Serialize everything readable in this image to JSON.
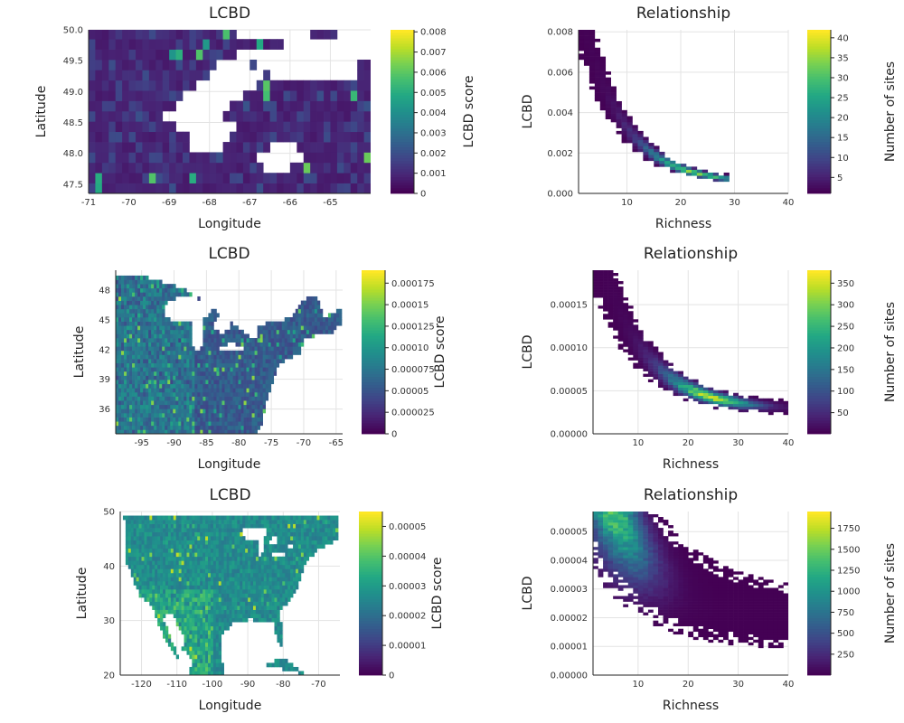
{
  "chart_data": [
    {
      "type": "heatmap",
      "title": "LCBD",
      "xlabel": "Longitude",
      "ylabel": "Latitude",
      "colorbar_label": "LCBD score",
      "colormap": "viridis",
      "xlim": [
        -71,
        -64.0
      ],
      "ylim": [
        47.35,
        50.0
      ],
      "xticks": [
        -71,
        -70,
        -69,
        -68,
        -67,
        -66,
        -65
      ],
      "xtick_labels": [
        "-71",
        "-70",
        "-69",
        "-68",
        "-67",
        "-66",
        "-65"
      ],
      "yticks": [
        47.5,
        48.0,
        48.5,
        49.0,
        49.5,
        50.0
      ],
      "ytick_labels": [
        "47.5",
        "48.0",
        "48.5",
        "49.0",
        "49.5",
        "50.0"
      ],
      "clim": [
        0,
        0.0081
      ],
      "cticks": [
        0,
        0.001,
        0.002,
        0.003,
        0.004,
        0.005,
        0.006,
        0.007,
        0.008
      ],
      "ctick_labels": [
        "0",
        "0.001",
        "0.002",
        "0.003",
        "0.004",
        "0.005",
        "0.006",
        "0.007",
        "0.008"
      ],
      "grid": {
        "cell": 0.1667,
        "mode": "coarse",
        "base": 0.00055,
        "spread": 0.0012,
        "noise": 0.0004,
        "hot": 0.007,
        "hotFrac": 0.03
      }
    },
    {
      "type": "heatmap",
      "title": "Relationship",
      "xlabel": "Richness",
      "ylabel": "LCBD",
      "colorbar_label": "Number of sites",
      "colormap": "viridis",
      "xlim": [
        1,
        40
      ],
      "ylim": [
        0,
        0.0081
      ],
      "xticks": [
        10,
        20,
        30,
        40
      ],
      "xtick_labels": [
        "10",
        "20",
        "30",
        "40"
      ],
      "yticks": [
        0,
        0.002,
        0.004,
        0.006,
        0.008
      ],
      "ytick_labels": [
        "0.000",
        "0.002",
        "0.004",
        "0.006",
        "0.008"
      ],
      "clim": [
        1,
        42
      ],
      "cticks": [
        5,
        10,
        15,
        20,
        25,
        30,
        35,
        40
      ],
      "ctick_labels": [
        "5",
        "10",
        "15",
        "20",
        "25",
        "30",
        "35",
        "40"
      ],
      "curve": {
        "xmin": 1,
        "xmax": 28,
        "a": 0.0083,
        "b": 0.13,
        "floor": 0.0005,
        "widthFrac": 0.25,
        "peakX": 22,
        "dx": 1,
        "dyCells": 55
      }
    },
    {
      "type": "heatmap",
      "title": "LCBD",
      "xlabel": "Longitude",
      "ylabel": "Latitude",
      "colorbar_label": "LCBD score",
      "colormap": "viridis",
      "xlim": [
        -99,
        -64
      ],
      "ylim": [
        33.5,
        50
      ],
      "xticks": [
        -95,
        -90,
        -85,
        -80,
        -75,
        -70,
        -65
      ],
      "xtick_labels": [
        "-95",
        "-90",
        "-85",
        "-80",
        "-75",
        "-70",
        "-65"
      ],
      "yticks": [
        36,
        39,
        42,
        45,
        48
      ],
      "ytick_labels": [
        "36",
        "39",
        "42",
        "45",
        "48"
      ],
      "clim": [
        0,
        0.00019
      ],
      "cticks": [
        0,
        2.5e-05,
        5e-05,
        7.5e-05,
        0.0001,
        0.000125,
        0.00015,
        0.000175
      ],
      "ctick_labels": [
        "0",
        "0.000025",
        "0.00005",
        "0.000075",
        "0.00010",
        "0.000125",
        "0.00015",
        "0.000175"
      ],
      "grid": {
        "cell": 0.42,
        "mode": "east",
        "base": 4e-05,
        "spread": 3e-05,
        "noise": 3e-05,
        "hot": 0.00016,
        "hotFrac": 0.05
      }
    },
    {
      "type": "heatmap",
      "title": "Relationship",
      "xlabel": "Richness",
      "ylabel": "LCBD",
      "colorbar_label": "Number of sites",
      "colormap": "viridis",
      "xlim": [
        1,
        40
      ],
      "ylim": [
        0,
        0.00019
      ],
      "xticks": [
        10,
        20,
        30,
        40
      ],
      "xtick_labels": [
        "10",
        "20",
        "30",
        "40"
      ],
      "yticks": [
        0,
        5e-05,
        0.0001,
        0.00015
      ],
      "ytick_labels": [
        "0.00000",
        "0.00005",
        "0.00010",
        "0.00015"
      ],
      "clim": [
        1,
        380
      ],
      "cticks": [
        50,
        100,
        150,
        200,
        250,
        300,
        350
      ],
      "ctick_labels": [
        "50",
        "100",
        "150",
        "200",
        "250",
        "300",
        "350"
      ],
      "curve": {
        "xmin": 1,
        "xmax": 40,
        "a": 0.00019,
        "b": 0.11,
        "floor": 2.8e-05,
        "widthFrac": 0.28,
        "peakX": 24,
        "dx": 1,
        "dyCells": 60
      }
    },
    {
      "type": "heatmap",
      "title": "LCBD",
      "xlabel": "Longitude",
      "ylabel": "Latitude",
      "colorbar_label": "LCBD score",
      "colormap": "viridis",
      "xlim": [
        -126,
        -64
      ],
      "ylim": [
        20,
        50
      ],
      "xticks": [
        -120,
        -110,
        -100,
        -90,
        -80,
        -70
      ],
      "xtick_labels": [
        "-120",
        "-110",
        "-100",
        "-90",
        "-80",
        "-70"
      ],
      "yticks": [
        20,
        30,
        40,
        50
      ],
      "ytick_labels": [
        "20",
        "30",
        "40",
        "50"
      ],
      "clim": [
        0,
        5.5e-05
      ],
      "cticks": [
        0,
        1e-05,
        2e-05,
        3e-05,
        4e-05,
        5e-05
      ],
      "ctick_labels": [
        "0",
        "0.00001",
        "0.00002",
        "0.00003",
        "0.00004",
        "0.00005"
      ],
      "grid": {
        "cell": 0.75,
        "mode": "na",
        "base": 2.2e-05,
        "spread": 8e-06,
        "noise": 9e-06,
        "hot": 5e-05,
        "hotFrac": 0.04
      }
    },
    {
      "type": "heatmap",
      "title": "Relationship",
      "xlabel": "Richness",
      "ylabel": "LCBD",
      "colorbar_label": "Number of sites",
      "colormap": "viridis",
      "xlim": [
        1,
        40
      ],
      "ylim": [
        0,
        5.7e-05
      ],
      "xticks": [
        10,
        20,
        30,
        40
      ],
      "xtick_labels": [
        "10",
        "20",
        "30",
        "40"
      ],
      "yticks": [
        0,
        1e-05,
        2e-05,
        3e-05,
        4e-05,
        5e-05
      ],
      "ytick_labels": [
        "0.00000",
        "0.00001",
        "0.00002",
        "0.00003",
        "0.00004",
        "0.00005"
      ],
      "clim": [
        1,
        1950
      ],
      "cticks": [
        250,
        500,
        750,
        1000,
        1250,
        1500,
        1750
      ],
      "ctick_labels": [
        "250",
        "500",
        "750",
        "1000",
        "1250",
        "1500",
        "1750"
      ],
      "curve": {
        "xmin": 1,
        "xmax": 40,
        "a": 5.7e-05,
        "b": 0.09,
        "floor": 1.9e-05,
        "widthFrac": 0.55,
        "peakX": 2,
        "dx": 1,
        "dyCells": 60
      }
    }
  ]
}
